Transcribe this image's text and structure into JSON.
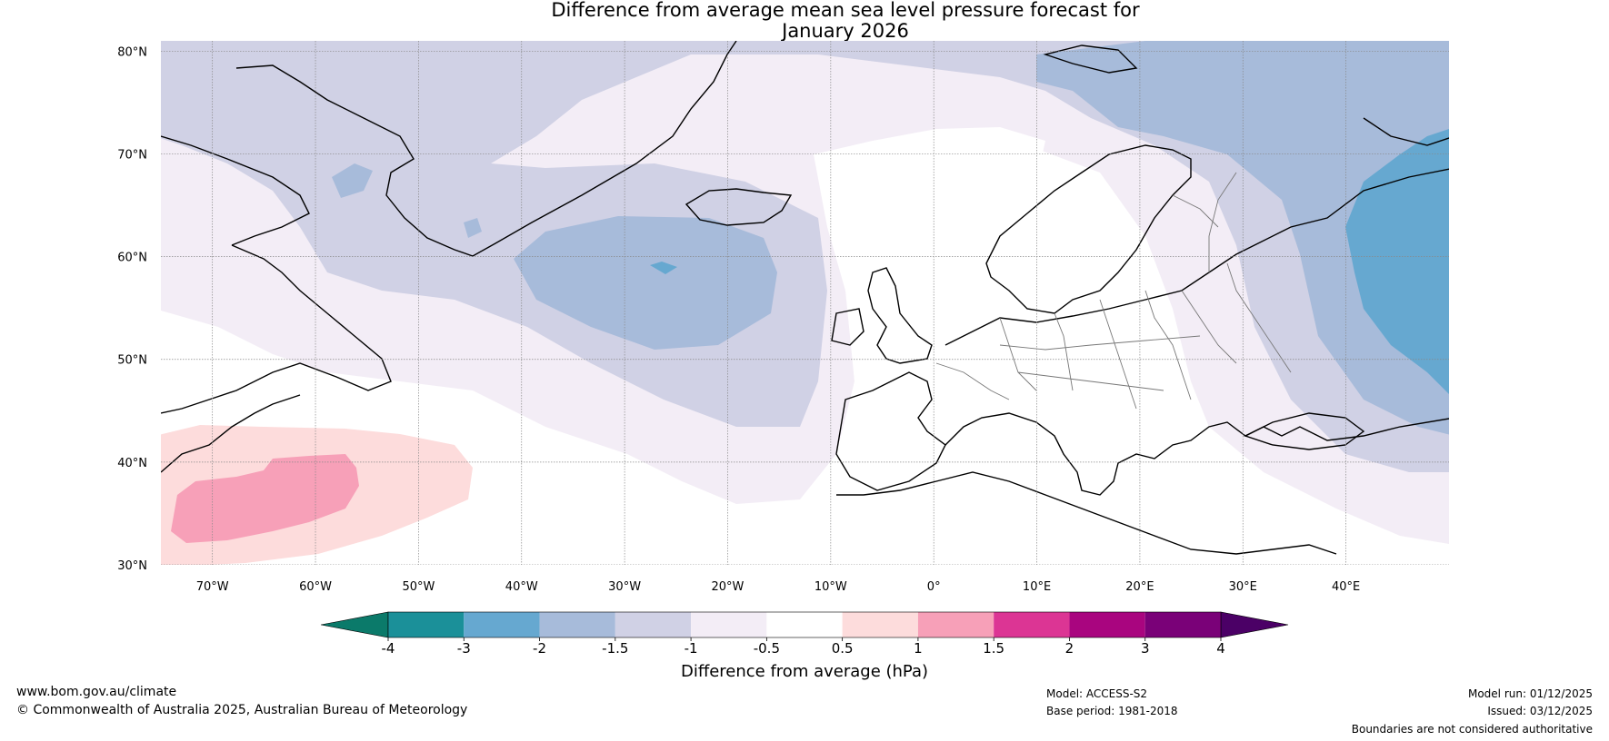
{
  "title": {
    "line1": "Difference from average mean sea level pressure forecast for",
    "line2": "January 2026"
  },
  "map": {
    "lon_range": [
      -75,
      50
    ],
    "lat_range": [
      30,
      81
    ],
    "lat_ticks": [
      {
        "value": 80,
        "label": "80°N"
      },
      {
        "value": 70,
        "label": "70°N"
      },
      {
        "value": 60,
        "label": "60°N"
      },
      {
        "value": 50,
        "label": "50°N"
      },
      {
        "value": 40,
        "label": "40°N"
      },
      {
        "value": 30,
        "label": "30°N"
      }
    ],
    "lon_ticks": [
      {
        "value": -70,
        "label": "70°W"
      },
      {
        "value": -60,
        "label": "60°W"
      },
      {
        "value": -50,
        "label": "50°W"
      },
      {
        "value": -40,
        "label": "40°W"
      },
      {
        "value": -30,
        "label": "30°W"
      },
      {
        "value": -20,
        "label": "20°W"
      },
      {
        "value": -10,
        "label": "10°W"
      },
      {
        "value": 0,
        "label": "0°"
      },
      {
        "value": 10,
        "label": "10°E"
      },
      {
        "value": 20,
        "label": "20°E"
      },
      {
        "value": 30,
        "label": "30°E"
      },
      {
        "value": 40,
        "label": "40°E"
      }
    ]
  },
  "colorbar": {
    "label": "Difference from average (hPa)",
    "ticks": [
      "-4",
      "-3",
      "-2",
      "-1.5",
      "-1",
      "-0.5",
      "0.5",
      "1",
      "1.5",
      "2",
      "3",
      "4"
    ],
    "under_color": "#0b7a6a",
    "over_color": "#4b0066",
    "colors": [
      "#1b9099",
      "#66a8d0",
      "#a7bbda",
      "#d0d1e5",
      "#f3edf6",
      "#ffffff",
      "#fddcdc",
      "#f7a0b8",
      "#dc3594",
      "#a9057f",
      "#7a0178"
    ]
  },
  "palette": {
    "ocean": "#ffffff",
    "coast": "#000000",
    "border": "#777777",
    "grid": "#888888"
  },
  "footer": {
    "website": "www.bom.gov.au/climate",
    "copyright": "© Commonwealth of Australia 2025, Australian Bureau of Meteorology",
    "model": "Model: ACCESS-S2",
    "base_period": "Base period: 1981-2018",
    "model_run": "Model run: 01/12/2025",
    "issued": "Issued: 03/12/2025",
    "disclaimer": "Boundaries are not considered authoritative"
  }
}
